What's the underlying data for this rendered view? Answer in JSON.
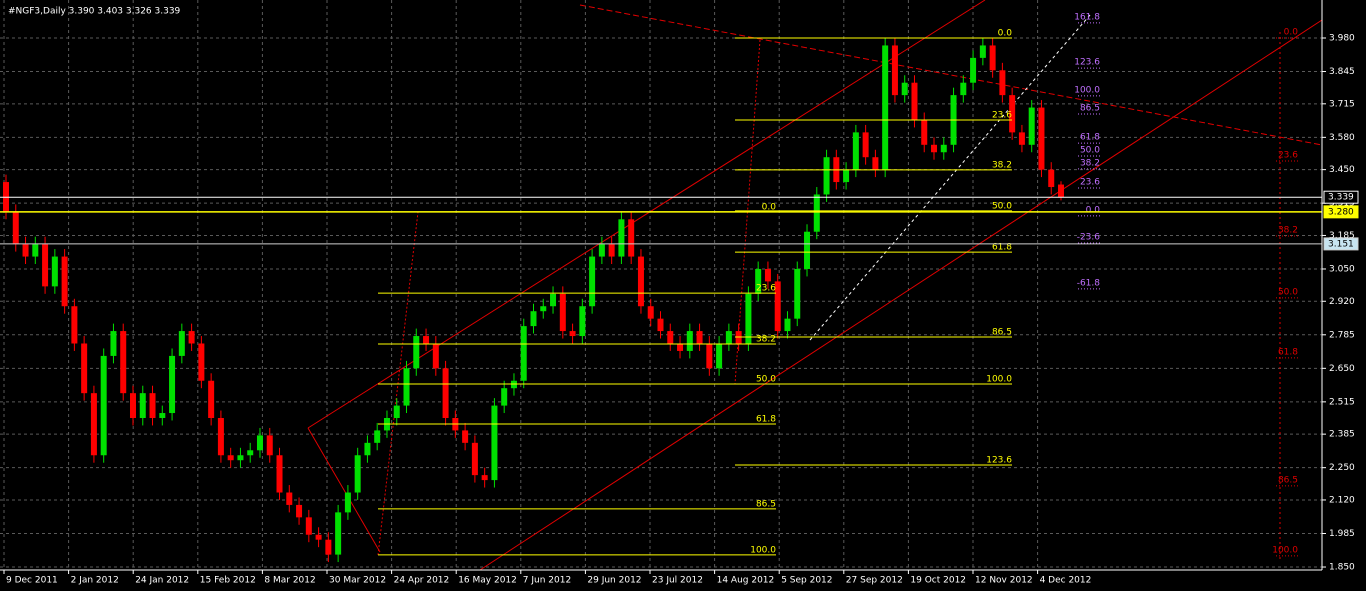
{
  "chart_data": {
    "type": "candlestick",
    "title": "#NGF3,Daily  3.390 3.403 3.326 3.339",
    "ylim": [
      1.838,
      4.133
    ],
    "yticks": [
      {
        "value": 3.98,
        "label": "3.980"
      },
      {
        "value": 3.845,
        "label": "3.845"
      },
      {
        "value": 3.715,
        "label": "3.715"
      },
      {
        "value": 3.58,
        "label": "3.580"
      },
      {
        "value": 3.45,
        "label": "3.450"
      },
      {
        "value": 3.315,
        "label": "3.315"
      },
      {
        "value": 3.185,
        "label": "3.185"
      },
      {
        "value": 3.05,
        "label": "3.050"
      },
      {
        "value": 2.92,
        "label": "2.920"
      },
      {
        "value": 2.785,
        "label": "2.785"
      },
      {
        "value": 2.65,
        "label": "2.650"
      },
      {
        "value": 2.515,
        "label": "2.515"
      },
      {
        "value": 2.385,
        "label": "2.385"
      },
      {
        "value": 2.25,
        "label": "2.250"
      },
      {
        "value": 2.12,
        "label": "2.120"
      },
      {
        "value": 1.985,
        "label": "1.985"
      },
      {
        "value": 1.85,
        "label": "1.850"
      }
    ],
    "x_labels": [
      "9 Dec 2011",
      "2 Jan 2012",
      "24 Jan 2012",
      "15 Feb 2012",
      "8 Mar 2012",
      "30 Mar 2012",
      "24 Apr 2012",
      "16 May 2012",
      "7 Jun 2012",
      "29 Jun 2012",
      "23 Jul 2012",
      "14 Aug 2012",
      "5 Sep 2012",
      "27 Sep 2012",
      "19 Oct 2012",
      "12 Nov 2012",
      "4 Dec 2012"
    ],
    "grid": true,
    "up_color": "#00e000",
    "down_color": "#ff0000",
    "candles": [
      [
        3.4,
        3.43,
        3.25,
        3.28
      ],
      [
        3.28,
        3.31,
        3.12,
        3.15
      ],
      [
        3.15,
        3.18,
        3.07,
        3.1
      ],
      [
        3.1,
        3.18,
        3.07,
        3.15
      ],
      [
        3.15,
        3.18,
        2.95,
        2.98
      ],
      [
        2.98,
        3.13,
        2.95,
        3.1
      ],
      [
        3.1,
        3.13,
        2.87,
        2.9
      ],
      [
        2.9,
        2.93,
        2.72,
        2.75
      ],
      [
        2.75,
        2.78,
        2.52,
        2.55
      ],
      [
        2.55,
        2.58,
        2.27,
        2.3
      ],
      [
        2.3,
        2.73,
        2.27,
        2.7
      ],
      [
        2.7,
        2.83,
        2.67,
        2.8
      ],
      [
        2.8,
        2.83,
        2.52,
        2.55
      ],
      [
        2.55,
        2.58,
        2.42,
        2.45
      ],
      [
        2.45,
        2.58,
        2.42,
        2.55
      ],
      [
        2.55,
        2.58,
        2.42,
        2.45
      ],
      [
        2.45,
        2.5,
        2.42,
        2.47
      ],
      [
        2.47,
        2.73,
        2.44,
        2.7
      ],
      [
        2.7,
        2.83,
        2.67,
        2.8
      ],
      [
        2.8,
        2.83,
        2.72,
        2.75
      ],
      [
        2.75,
        2.78,
        2.57,
        2.6
      ],
      [
        2.6,
        2.63,
        2.42,
        2.45
      ],
      [
        2.45,
        2.48,
        2.27,
        2.3
      ],
      [
        2.3,
        2.33,
        2.25,
        2.28
      ],
      [
        2.28,
        2.33,
        2.25,
        2.3
      ],
      [
        2.3,
        2.35,
        2.27,
        2.32
      ],
      [
        2.32,
        2.41,
        2.29,
        2.38
      ],
      [
        2.38,
        2.41,
        2.27,
        2.3
      ],
      [
        2.3,
        2.33,
        2.12,
        2.15
      ],
      [
        2.15,
        2.18,
        2.07,
        2.1
      ],
      [
        2.1,
        2.13,
        2.02,
        2.05
      ],
      [
        2.05,
        2.08,
        1.95,
        1.98
      ],
      [
        1.98,
        2.01,
        1.93,
        1.96
      ],
      [
        1.96,
        1.99,
        1.87,
        1.9
      ],
      [
        1.9,
        2.1,
        1.87,
        2.07
      ],
      [
        2.07,
        2.18,
        2.04,
        2.15
      ],
      [
        2.15,
        2.33,
        2.12,
        2.3
      ],
      [
        2.3,
        2.38,
        2.27,
        2.35
      ],
      [
        2.35,
        2.43,
        2.32,
        2.4
      ],
      [
        2.4,
        2.48,
        2.37,
        2.45
      ],
      [
        2.45,
        2.53,
        2.42,
        2.5
      ],
      [
        2.5,
        2.68,
        2.47,
        2.65
      ],
      [
        2.65,
        2.81,
        2.62,
        2.78
      ],
      [
        2.78,
        2.81,
        2.72,
        2.75
      ],
      [
        2.75,
        2.78,
        2.62,
        2.65
      ],
      [
        2.65,
        2.68,
        2.42,
        2.45
      ],
      [
        2.45,
        2.48,
        2.37,
        2.4
      ],
      [
        2.4,
        2.43,
        2.32,
        2.35
      ],
      [
        2.35,
        2.38,
        2.19,
        2.22
      ],
      [
        2.22,
        2.25,
        2.17,
        2.2
      ],
      [
        2.2,
        2.53,
        2.17,
        2.5
      ],
      [
        2.5,
        2.6,
        2.47,
        2.57
      ],
      [
        2.57,
        2.63,
        2.54,
        2.6
      ],
      [
        2.6,
        2.85,
        2.57,
        2.82
      ],
      [
        2.82,
        2.91,
        2.79,
        2.88
      ],
      [
        2.88,
        2.93,
        2.85,
        2.9
      ],
      [
        2.9,
        2.98,
        2.87,
        2.95
      ],
      [
        2.95,
        2.98,
        2.77,
        2.8
      ],
      [
        2.8,
        2.83,
        2.75,
        2.78
      ],
      [
        2.78,
        2.93,
        2.75,
        2.9
      ],
      [
        2.9,
        3.13,
        2.87,
        3.1
      ],
      [
        3.1,
        3.18,
        3.07,
        3.15
      ],
      [
        3.15,
        3.18,
        3.07,
        3.1
      ],
      [
        3.1,
        3.28,
        3.07,
        3.25
      ],
      [
        3.25,
        3.28,
        3.07,
        3.1
      ],
      [
        3.1,
        3.13,
        2.87,
        2.9
      ],
      [
        2.9,
        2.93,
        2.82,
        2.85
      ],
      [
        2.85,
        2.88,
        2.77,
        2.8
      ],
      [
        2.8,
        2.83,
        2.72,
        2.75
      ],
      [
        2.75,
        2.78,
        2.69,
        2.72
      ],
      [
        2.72,
        2.83,
        2.69,
        2.8
      ],
      [
        2.8,
        2.83,
        2.72,
        2.75
      ],
      [
        2.75,
        2.78,
        2.62,
        2.65
      ],
      [
        2.65,
        2.78,
        2.62,
        2.75
      ],
      [
        2.75,
        2.83,
        2.72,
        2.8
      ],
      [
        2.8,
        2.83,
        2.72,
        2.75
      ],
      [
        2.75,
        2.98,
        2.72,
        2.95
      ],
      [
        2.95,
        3.08,
        2.92,
        3.05
      ],
      [
        3.05,
        3.08,
        2.97,
        3.0
      ],
      [
        3.0,
        3.03,
        2.77,
        2.8
      ],
      [
        2.8,
        2.88,
        2.77,
        2.85
      ],
      [
        2.85,
        3.08,
        2.82,
        3.05
      ],
      [
        3.05,
        3.23,
        3.02,
        3.2
      ],
      [
        3.2,
        3.38,
        3.17,
        3.35
      ],
      [
        3.35,
        3.53,
        3.32,
        3.5
      ],
      [
        3.5,
        3.53,
        3.37,
        3.4
      ],
      [
        3.4,
        3.48,
        3.37,
        3.45
      ],
      [
        3.45,
        3.63,
        3.42,
        3.6
      ],
      [
        3.6,
        3.63,
        3.47,
        3.5
      ],
      [
        3.5,
        3.53,
        3.42,
        3.45
      ],
      [
        3.45,
        3.98,
        3.42,
        3.95
      ],
      [
        3.95,
        3.98,
        3.72,
        3.75
      ],
      [
        3.75,
        3.83,
        3.72,
        3.8
      ],
      [
        3.8,
        3.83,
        3.62,
        3.65
      ],
      [
        3.65,
        3.68,
        3.52,
        3.55
      ],
      [
        3.55,
        3.58,
        3.49,
        3.52
      ],
      [
        3.52,
        3.58,
        3.49,
        3.55
      ],
      [
        3.55,
        3.78,
        3.52,
        3.75
      ],
      [
        3.75,
        3.83,
        3.72,
        3.8
      ],
      [
        3.8,
        3.93,
        3.77,
        3.9
      ],
      [
        3.9,
        3.98,
        3.87,
        3.95
      ],
      [
        3.95,
        3.98,
        3.82,
        3.85
      ],
      [
        3.85,
        3.88,
        3.72,
        3.75
      ],
      [
        3.75,
        3.78,
        3.57,
        3.6
      ],
      [
        3.6,
        3.63,
        3.52,
        3.55
      ],
      [
        3.55,
        3.73,
        3.52,
        3.7
      ],
      [
        3.7,
        3.73,
        3.42,
        3.45
      ],
      [
        3.45,
        3.48,
        3.35,
        3.38
      ],
      [
        3.39,
        3.403,
        3.326,
        3.339
      ]
    ],
    "fib_groups": [
      {
        "color": "#ffff00",
        "levels": [
          {
            "label": "0.0",
            "price": 3.98
          },
          {
            "label": "23.6",
            "price": 3.65
          },
          {
            "label": "38.2",
            "price": 3.449
          },
          {
            "label": "50.0",
            "price": 3.284
          },
          {
            "label": "61.8",
            "price": 3.118
          },
          {
            "label": "86.5",
            "price": 2.776
          },
          {
            "label": "100.0",
            "price": 2.587
          },
          {
            "label": "123.6",
            "price": 2.261
          }
        ]
      },
      {
        "color": "#ffff00",
        "levels": [
          {
            "label": "0.0",
            "price": 3.28
          },
          {
            "label": "23.6",
            "price": 2.953
          },
          {
            "label": "38.2",
            "price": 2.748
          },
          {
            "label": "50.0",
            "price": 2.587
          },
          {
            "label": "61.8",
            "price": 2.426
          },
          {
            "label": "86.5",
            "price": 2.084
          },
          {
            "label": "100.0",
            "price": 1.899
          }
        ]
      },
      {
        "color": "#c070ff",
        "levels": [
          {
            "label": "161.8",
            "price": 4.065
          },
          {
            "label": "123.6",
            "price": 3.883
          },
          {
            "label": "100.0",
            "price": 3.771
          },
          {
            "label": "86.5",
            "price": 3.698
          },
          {
            "label": "61.8",
            "price": 3.581
          },
          {
            "label": "50.0",
            "price": 3.529
          },
          {
            "label": "38.2",
            "price": 3.477
          },
          {
            "label": "23.6",
            "price": 3.4
          },
          {
            "label": "0.0",
            "price": 3.288
          },
          {
            "label": "-23.6",
            "price": 3.179
          },
          {
            "label": "-61.8",
            "price": 2.994
          }
        ]
      },
      {
        "color": "#e00000",
        "levels": [
          {
            "label": "0.0",
            "price": 4.004
          },
          {
            "label": "23.6",
            "price": 3.509
          },
          {
            "label": "38.2",
            "price": 3.207
          },
          {
            "label": "50.0",
            "price": 2.958
          },
          {
            "label": "61.8",
            "price": 2.716
          },
          {
            "label": "86.5",
            "price": 2.201
          },
          {
            "label": "100.0",
            "price": 1.919
          }
        ]
      }
    ],
    "price_markers": [
      {
        "value": 3.339,
        "label": "3.339",
        "line_color": "#ffffff",
        "box_fill": "#000000",
        "text_color": "#ffffff"
      },
      {
        "value": 3.28,
        "label": "3.280",
        "line_color": "#ffff00",
        "box_fill": "#ffff00",
        "text_color": "#000000"
      },
      {
        "value": 3.151,
        "label": "3.151",
        "line_color": "#d0d0d0",
        "box_fill": "#c8e4f0",
        "text_color": "#000000"
      }
    ]
  }
}
